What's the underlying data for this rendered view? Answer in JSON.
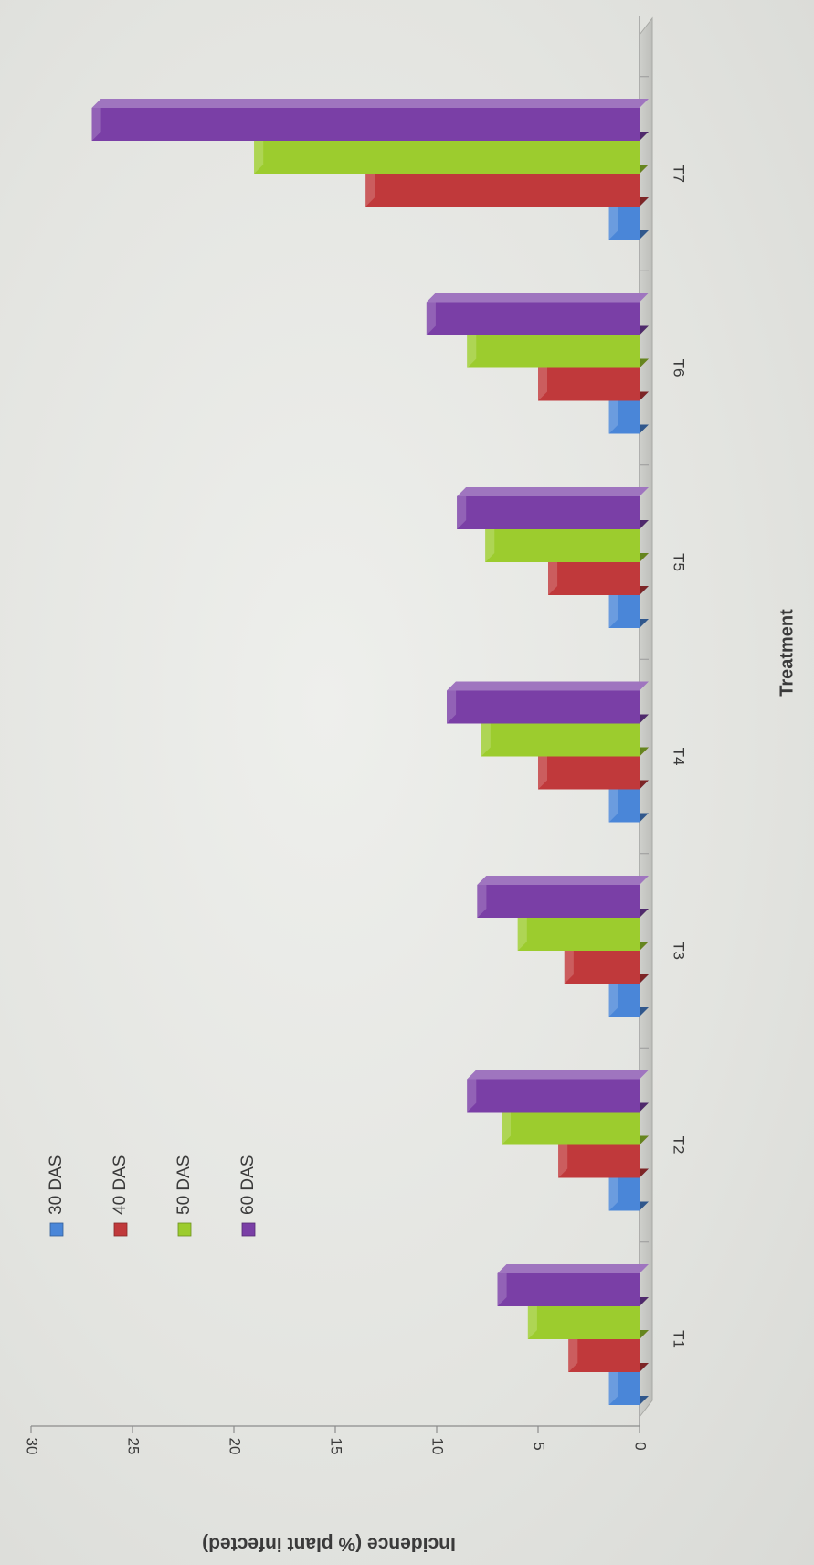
{
  "chart_data": {
    "type": "bar",
    "xlabel": "Treatment",
    "ylabel": "Incidence (% plant infected)",
    "categories": [
      "T1",
      "T2",
      "T3",
      "T4",
      "T5",
      "T6",
      "T7"
    ],
    "ylim": [
      0,
      30
    ],
    "yticks": [
      "0",
      "5",
      "10",
      "15",
      "20",
      "25",
      "30"
    ],
    "legend_position": "top-left",
    "grid": false,
    "series": [
      {
        "name": "30 DAS",
        "color": "#4a86d8",
        "values": [
          1.5,
          1.5,
          1.5,
          1.5,
          1.5,
          1.5,
          1.5
        ]
      },
      {
        "name": "40 DAS",
        "color": "#c0393b",
        "values": [
          3.5,
          4.0,
          3.7,
          5.0,
          4.5,
          5.0,
          13.5
        ]
      },
      {
        "name": "50 DAS",
        "color": "#9ccc2e",
        "values": [
          5.5,
          6.8,
          6.0,
          7.8,
          7.6,
          8.5,
          19.0
        ]
      },
      {
        "name": "60 DAS",
        "color": "#7a3fa6",
        "values": [
          7.0,
          8.5,
          8.0,
          9.5,
          9.0,
          10.5,
          27.0
        ]
      }
    ]
  }
}
